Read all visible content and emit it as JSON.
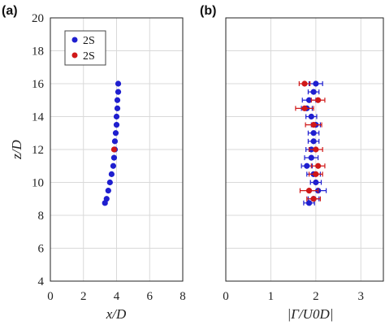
{
  "colors": {
    "blue": "#1f1fcf",
    "red": "#d01818"
  },
  "chart_data": [
    {
      "type": "scatter",
      "panel_label": "(a)",
      "xlabel": "x/D",
      "ylabel": "z/D",
      "xlim": [
        0,
        8
      ],
      "ylim": [
        4,
        20
      ],
      "xticks": [
        0,
        2,
        4,
        6,
        8
      ],
      "yticks": [
        4,
        6,
        8,
        10,
        12,
        14,
        16,
        18,
        20
      ],
      "grid": true,
      "legend": {
        "position": "top-left",
        "entries": [
          "2S",
          "2S"
        ]
      },
      "series": [
        {
          "name": "2S",
          "color": "blue",
          "points": [
            {
              "x": 4.1,
              "y": 16.0
            },
            {
              "x": 4.1,
              "y": 15.5
            },
            {
              "x": 4.05,
              "y": 15.0
            },
            {
              "x": 4.05,
              "y": 14.5
            },
            {
              "x": 4.0,
              "y": 14.0
            },
            {
              "x": 4.0,
              "y": 13.5
            },
            {
              "x": 3.95,
              "y": 13.0
            },
            {
              "x": 3.9,
              "y": 12.5
            },
            {
              "x": 3.9,
              "y": 12.0
            },
            {
              "x": 3.85,
              "y": 11.5
            },
            {
              "x": 3.8,
              "y": 11.0
            },
            {
              "x": 3.7,
              "y": 10.5
            },
            {
              "x": 3.6,
              "y": 10.0
            },
            {
              "x": 3.5,
              "y": 9.5
            },
            {
              "x": 3.4,
              "y": 9.0
            },
            {
              "x": 3.3,
              "y": 8.75
            }
          ]
        },
        {
          "name": "2S",
          "color": "red",
          "points": [
            {
              "x": 3.85,
              "y": 12.0
            }
          ]
        }
      ]
    },
    {
      "type": "scatter",
      "panel_label": "(b)",
      "xlabel": "|Γ/U0D|",
      "xlim": [
        0,
        3.5
      ],
      "ylim": [
        4,
        20
      ],
      "xticks": [
        0,
        1,
        2,
        3
      ],
      "yticks": [
        4,
        6,
        8,
        10,
        12,
        14,
        16,
        18,
        20
      ],
      "grid": true,
      "error_bars": true,
      "series": [
        {
          "name": "2S",
          "color": "blue",
          "points": [
            {
              "x": 2.0,
              "y": 16.0,
              "err": 0.15
            },
            {
              "x": 1.95,
              "y": 15.5,
              "err": 0.12
            },
            {
              "x": 1.85,
              "y": 15.0,
              "err": 0.15
            },
            {
              "x": 1.8,
              "y": 14.5,
              "err": 0.12
            },
            {
              "x": 1.9,
              "y": 14.0,
              "err": 0.12
            },
            {
              "x": 2.0,
              "y": 13.5,
              "err": 0.1
            },
            {
              "x": 1.95,
              "y": 13.0,
              "err": 0.12
            },
            {
              "x": 1.95,
              "y": 12.5,
              "err": 0.12
            },
            {
              "x": 1.9,
              "y": 12.0,
              "err": 0.12
            },
            {
              "x": 1.9,
              "y": 11.5,
              "err": 0.15
            },
            {
              "x": 1.8,
              "y": 11.0,
              "err": 0.12
            },
            {
              "x": 1.95,
              "y": 10.5,
              "err": 0.15
            },
            {
              "x": 2.0,
              "y": 10.0,
              "err": 0.12
            },
            {
              "x": 2.05,
              "y": 9.5,
              "err": 0.18
            },
            {
              "x": 1.95,
              "y": 9.0,
              "err": 0.12
            },
            {
              "x": 1.85,
              "y": 8.75,
              "err": 0.12
            }
          ]
        },
        {
          "name": "2S",
          "color": "red",
          "points": [
            {
              "x": 1.75,
              "y": 16.0,
              "err": 0.12
            },
            {
              "x": 2.05,
              "y": 15.0,
              "err": 0.15
            },
            {
              "x": 1.75,
              "y": 14.5,
              "err": 0.2
            },
            {
              "x": 1.95,
              "y": 13.5,
              "err": 0.18
            },
            {
              "x": 2.0,
              "y": 12.0,
              "err": 0.15
            },
            {
              "x": 2.05,
              "y": 11.0,
              "err": 0.15
            },
            {
              "x": 2.0,
              "y": 10.5,
              "err": 0.15
            },
            {
              "x": 1.85,
              "y": 9.5,
              "err": 0.2
            },
            {
              "x": 1.95,
              "y": 9.0,
              "err": 0.15
            }
          ]
        }
      ]
    }
  ]
}
